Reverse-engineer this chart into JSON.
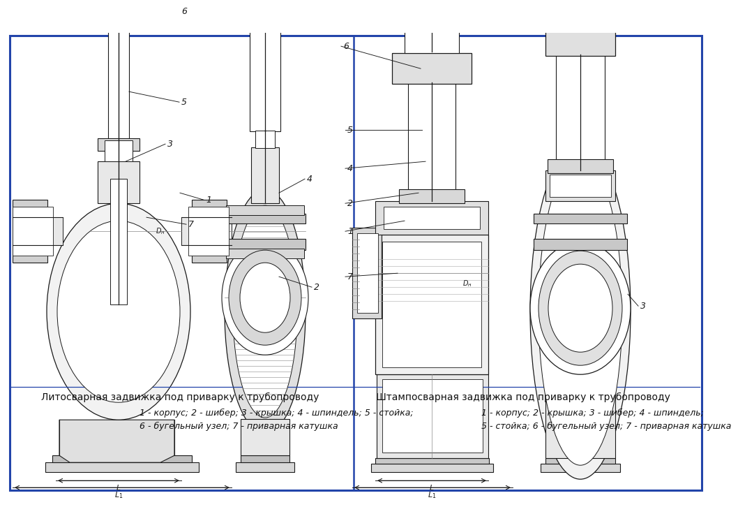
{
  "bg_color": "white",
  "border_color": "#2244aa",
  "line_color": "#1a1a1a",
  "hatch_color": "#555555",
  "gray_fill": "#e8e8e8",
  "mid_gray": "#cccccc",
  "dark_gray": "#aaaaaa",
  "left_title": "Литосварная задвижка под приварку к трубопроводу",
  "right_title": "Штампосварная задвижка под приварку к трубопроводу",
  "left_legend1": "1 - корпус; 2 - шибер; 3 - крышка; 4 - шпиндель; 5 - стойка;",
  "left_legend2": "6 - бугельный узел; 7 - приварная катушка",
  "right_legend1": "1 - корпус; 2 - крышка; 3 - шибер; 4 - шпиндель;",
  "right_legend2": "5 - стойка; 6 - бугельный узел; 7 - приварная катушка",
  "title_fontsize": 10,
  "legend_fontsize": 9,
  "label_fontsize": 9
}
